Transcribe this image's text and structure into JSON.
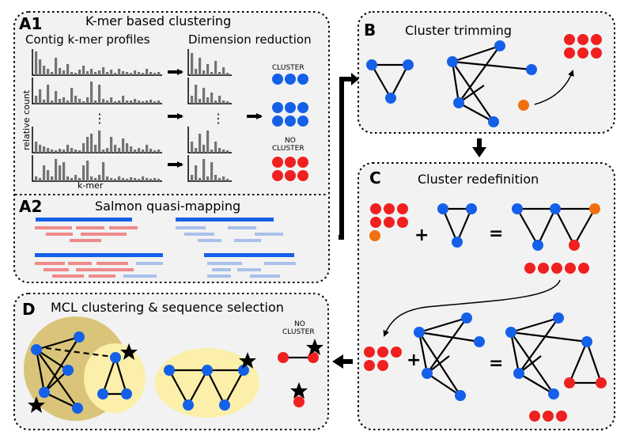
{
  "colors": {
    "blue": "#1560e8",
    "red": "#f02020",
    "orange": "#f07010",
    "light_red": "#f08a8a",
    "light_blue": "#a9c1ea",
    "bar_gray": "#737373",
    "panel_bg": "#f2f2f2",
    "outer_cluster": "#d9c47a",
    "inner_cluster": "#fbefaa"
  },
  "panels": {
    "a1": {
      "label": "A1",
      "title": "K-mer based clustering",
      "left_subtitle": "Contig k-mer profiles",
      "right_subtitle": "Dimension reduction",
      "y_label": "relative count",
      "x_label": "k-mer",
      "cluster_label": "CLUSTER",
      "no_cluster_label_1": "NO",
      "no_cluster_label_2": "CLUSTER",
      "ellipsis": "⋮"
    },
    "a2": {
      "label": "A2",
      "title": "Salmon quasi-mapping"
    },
    "b": {
      "label": "B",
      "title": "Cluster trimming"
    },
    "c": {
      "label": "C",
      "title": "Cluster redefinition",
      "plus": "+",
      "equals": "="
    },
    "d": {
      "label": "D",
      "title": "MCL clustering & sequence selection",
      "no_cluster_label_1": "NO",
      "no_cluster_label_2": "CLUSTER"
    }
  }
}
